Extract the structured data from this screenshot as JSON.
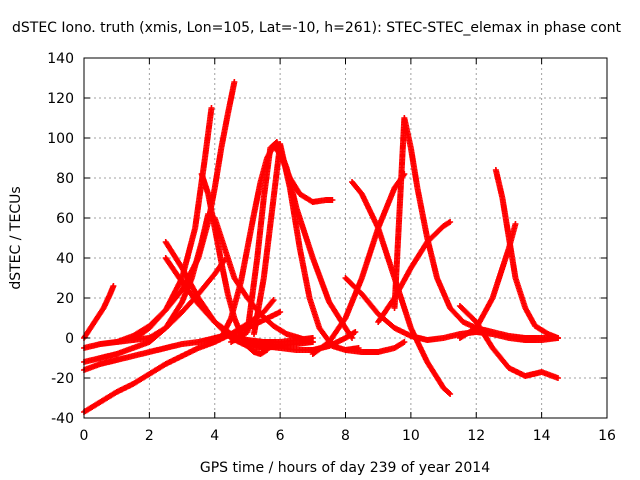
{
  "chart_data": {
    "type": "scatter",
    "title": "dSTEC Iono. truth (xmis, Lon=105, Lat=-10, h=261): STEC-STEC_elemax in phase cont",
    "xlabel": "GPS time / hours of day 239 of year 2014",
    "ylabel": "dSTEC  / TECUs",
    "xlim": [
      0,
      16
    ],
    "ylim": [
      -40,
      140
    ],
    "xticks": [
      0,
      2,
      4,
      6,
      8,
      10,
      12,
      14,
      16
    ],
    "yticks": [
      -40,
      -20,
      0,
      20,
      40,
      60,
      80,
      100,
      120,
      140
    ],
    "grid": true,
    "marker": "+",
    "color": "#ff0000",
    "series": [
      {
        "x": [
          0,
          0.2,
          0.4,
          0.6,
          0.8,
          0.9
        ],
        "values": [
          0,
          5,
          10,
          15,
          22,
          26
        ]
      },
      {
        "x": [
          0,
          0.5,
          1.0,
          1.5,
          2.0,
          2.5,
          3.0,
          3.5,
          4.0,
          4.5,
          5.0,
          5.5,
          5.8
        ],
        "values": [
          -37,
          -32,
          -27,
          -23,
          -18,
          -13,
          -9,
          -5,
          -2,
          2,
          7,
          13,
          19
        ]
      },
      {
        "x": [
          0,
          0.5,
          1.0,
          1.5,
          2.0,
          2.5,
          3.0,
          3.5,
          4.0,
          4.3
        ],
        "values": [
          -5,
          -3,
          -2,
          -1,
          0,
          5,
          13,
          22,
          32,
          39
        ]
      },
      {
        "x": [
          0,
          0.5,
          1.0,
          1.5,
          2.0,
          2.5,
          3.0,
          3.3,
          3.6,
          3.8,
          4.0,
          4.3,
          4.6,
          5.0,
          5.4,
          5.8,
          6.2,
          6.6,
          7.0
        ],
        "values": [
          -12,
          -10,
          -8,
          -5,
          -2,
          5,
          18,
          30,
          48,
          62,
          60,
          45,
          30,
          20,
          12,
          6,
          2,
          0,
          -2
        ]
      },
      {
        "x": [
          0,
          0.5,
          1.0,
          1.5,
          2.0,
          2.5,
          3.0,
          3.5,
          4.0,
          4.5,
          5.0,
          5.5,
          6.0
        ],
        "values": [
          -16,
          -13,
          -11,
          -9,
          -7,
          -5,
          -3,
          -2,
          0,
          2,
          5,
          9,
          13
        ]
      },
      {
        "x": [
          1.0,
          1.5,
          2.0,
          2.5,
          3.0,
          3.5,
          3.8,
          4.0,
          4.2,
          4.4,
          4.6
        ],
        "values": [
          -2,
          1,
          6,
          14,
          24,
          40,
          58,
          75,
          95,
          112,
          128
        ]
      },
      {
        "x": [
          1.5,
          2.0,
          2.5,
          3.0,
          3.4,
          3.7,
          3.9
        ],
        "values": [
          -1,
          5,
          14,
          30,
          55,
          90,
          115
        ]
      },
      {
        "x": [
          3.6,
          3.8,
          4.0,
          4.2,
          4.4,
          4.6,
          4.8,
          5.0,
          5.2,
          5.4,
          5.6
        ],
        "values": [
          82,
          72,
          55,
          38,
          22,
          10,
          2,
          -4,
          -7,
          -8,
          -6
        ]
      },
      {
        "x": [
          2.5,
          3.0,
          3.5,
          4.0,
          4.5,
          5.0,
          5.5,
          6.0,
          6.5,
          7.0
        ],
        "values": [
          48,
          35,
          20,
          8,
          0,
          -4,
          -5,
          -4,
          -3,
          -2
        ]
      },
      {
        "x": [
          2.5,
          3.0,
          3.5,
          4.0,
          4.5,
          5.0,
          5.5,
          6.0,
          6.5,
          7.0
        ],
        "values": [
          40,
          28,
          17,
          8,
          2,
          -1,
          -2,
          -2,
          -1,
          0
        ]
      },
      {
        "x": [
          4.2,
          4.5,
          4.8,
          5.0,
          5.2,
          5.4,
          5.6,
          5.8,
          6.0,
          6.3,
          6.6,
          7.0,
          7.4,
          7.6
        ],
        "values": [
          0,
          10,
          28,
          45,
          62,
          78,
          90,
          96,
          92,
          80,
          72,
          68,
          69,
          69
        ]
      },
      {
        "x": [
          4.5,
          5.0,
          5.3,
          5.5,
          5.7,
          5.9,
          6.2,
          6.5,
          7.0,
          7.5,
          8.0,
          8.2
        ],
        "values": [
          -2,
          3,
          40,
          70,
          95,
          98,
          85,
          65,
          40,
          18,
          5,
          0
        ]
      },
      {
        "x": [
          5.2,
          5.5,
          5.8,
          6.0,
          6.3,
          6.6,
          6.9,
          7.2,
          7.6,
          8.0,
          8.4
        ],
        "values": [
          2,
          30,
          70,
          97,
          75,
          45,
          20,
          5,
          -4,
          -6,
          -5
        ]
      },
      {
        "x": [
          5.0,
          5.5,
          6.0,
          6.5,
          7.0,
          7.5,
          8.0,
          8.3
        ],
        "values": [
          -2,
          -4,
          -5,
          -6,
          -6,
          -4,
          0,
          3
        ]
      },
      {
        "x": [
          7.0,
          7.5,
          8.0,
          8.5,
          9.0,
          9.5,
          9.8
        ],
        "values": [
          -8,
          -2,
          10,
          30,
          55,
          75,
          82
        ]
      },
      {
        "x": [
          8.2,
          8.5,
          9.0,
          9.5,
          10.0,
          10.5,
          11.0,
          11.2
        ],
        "values": [
          78,
          72,
          55,
          30,
          5,
          -12,
          -25,
          -28
        ]
      },
      {
        "x": [
          8.0,
          8.5,
          9.0,
          9.5,
          9.8
        ],
        "values": [
          -6,
          -7,
          -7,
          -5,
          -2
        ]
      },
      {
        "x": [
          8.0,
          8.5,
          9.0,
          9.5,
          10.0,
          10.5,
          11.0,
          11.5,
          12.0,
          12.5,
          13.0,
          13.5,
          14.0,
          14.5
        ],
        "values": [
          30,
          22,
          12,
          5,
          1,
          -1,
          0,
          2,
          3,
          2,
          0,
          -1,
          -1,
          0
        ]
      },
      {
        "x": [
          9.5,
          9.8,
          10.0,
          10.2,
          10.5,
          10.8,
          11.2,
          11.6,
          12.0,
          12.5,
          13.0,
          13.5,
          14.0,
          14.5
        ],
        "values": [
          15,
          110,
          95,
          75,
          50,
          30,
          15,
          8,
          5,
          3,
          1,
          0,
          0,
          0
        ]
      },
      {
        "x": [
          9.0,
          9.5,
          10.0,
          10.5,
          11.0,
          11.2
        ],
        "values": [
          8,
          20,
          35,
          48,
          56,
          58
        ]
      },
      {
        "x": [
          11.5,
          12.0,
          12.5,
          13.0,
          13.5,
          14.0,
          14.5
        ],
        "values": [
          16,
          8,
          -5,
          -15,
          -19,
          -17,
          -20
        ]
      },
      {
        "x": [
          11.5,
          12.0,
          12.5,
          13.0,
          13.2
        ],
        "values": [
          0,
          5,
          20,
          45,
          57
        ]
      },
      {
        "x": [
          12.6,
          12.8,
          13.0,
          13.2,
          13.5,
          13.8,
          14.2,
          14.5
        ],
        "values": [
          84,
          70,
          50,
          30,
          15,
          6,
          2,
          0
        ]
      }
    ]
  }
}
